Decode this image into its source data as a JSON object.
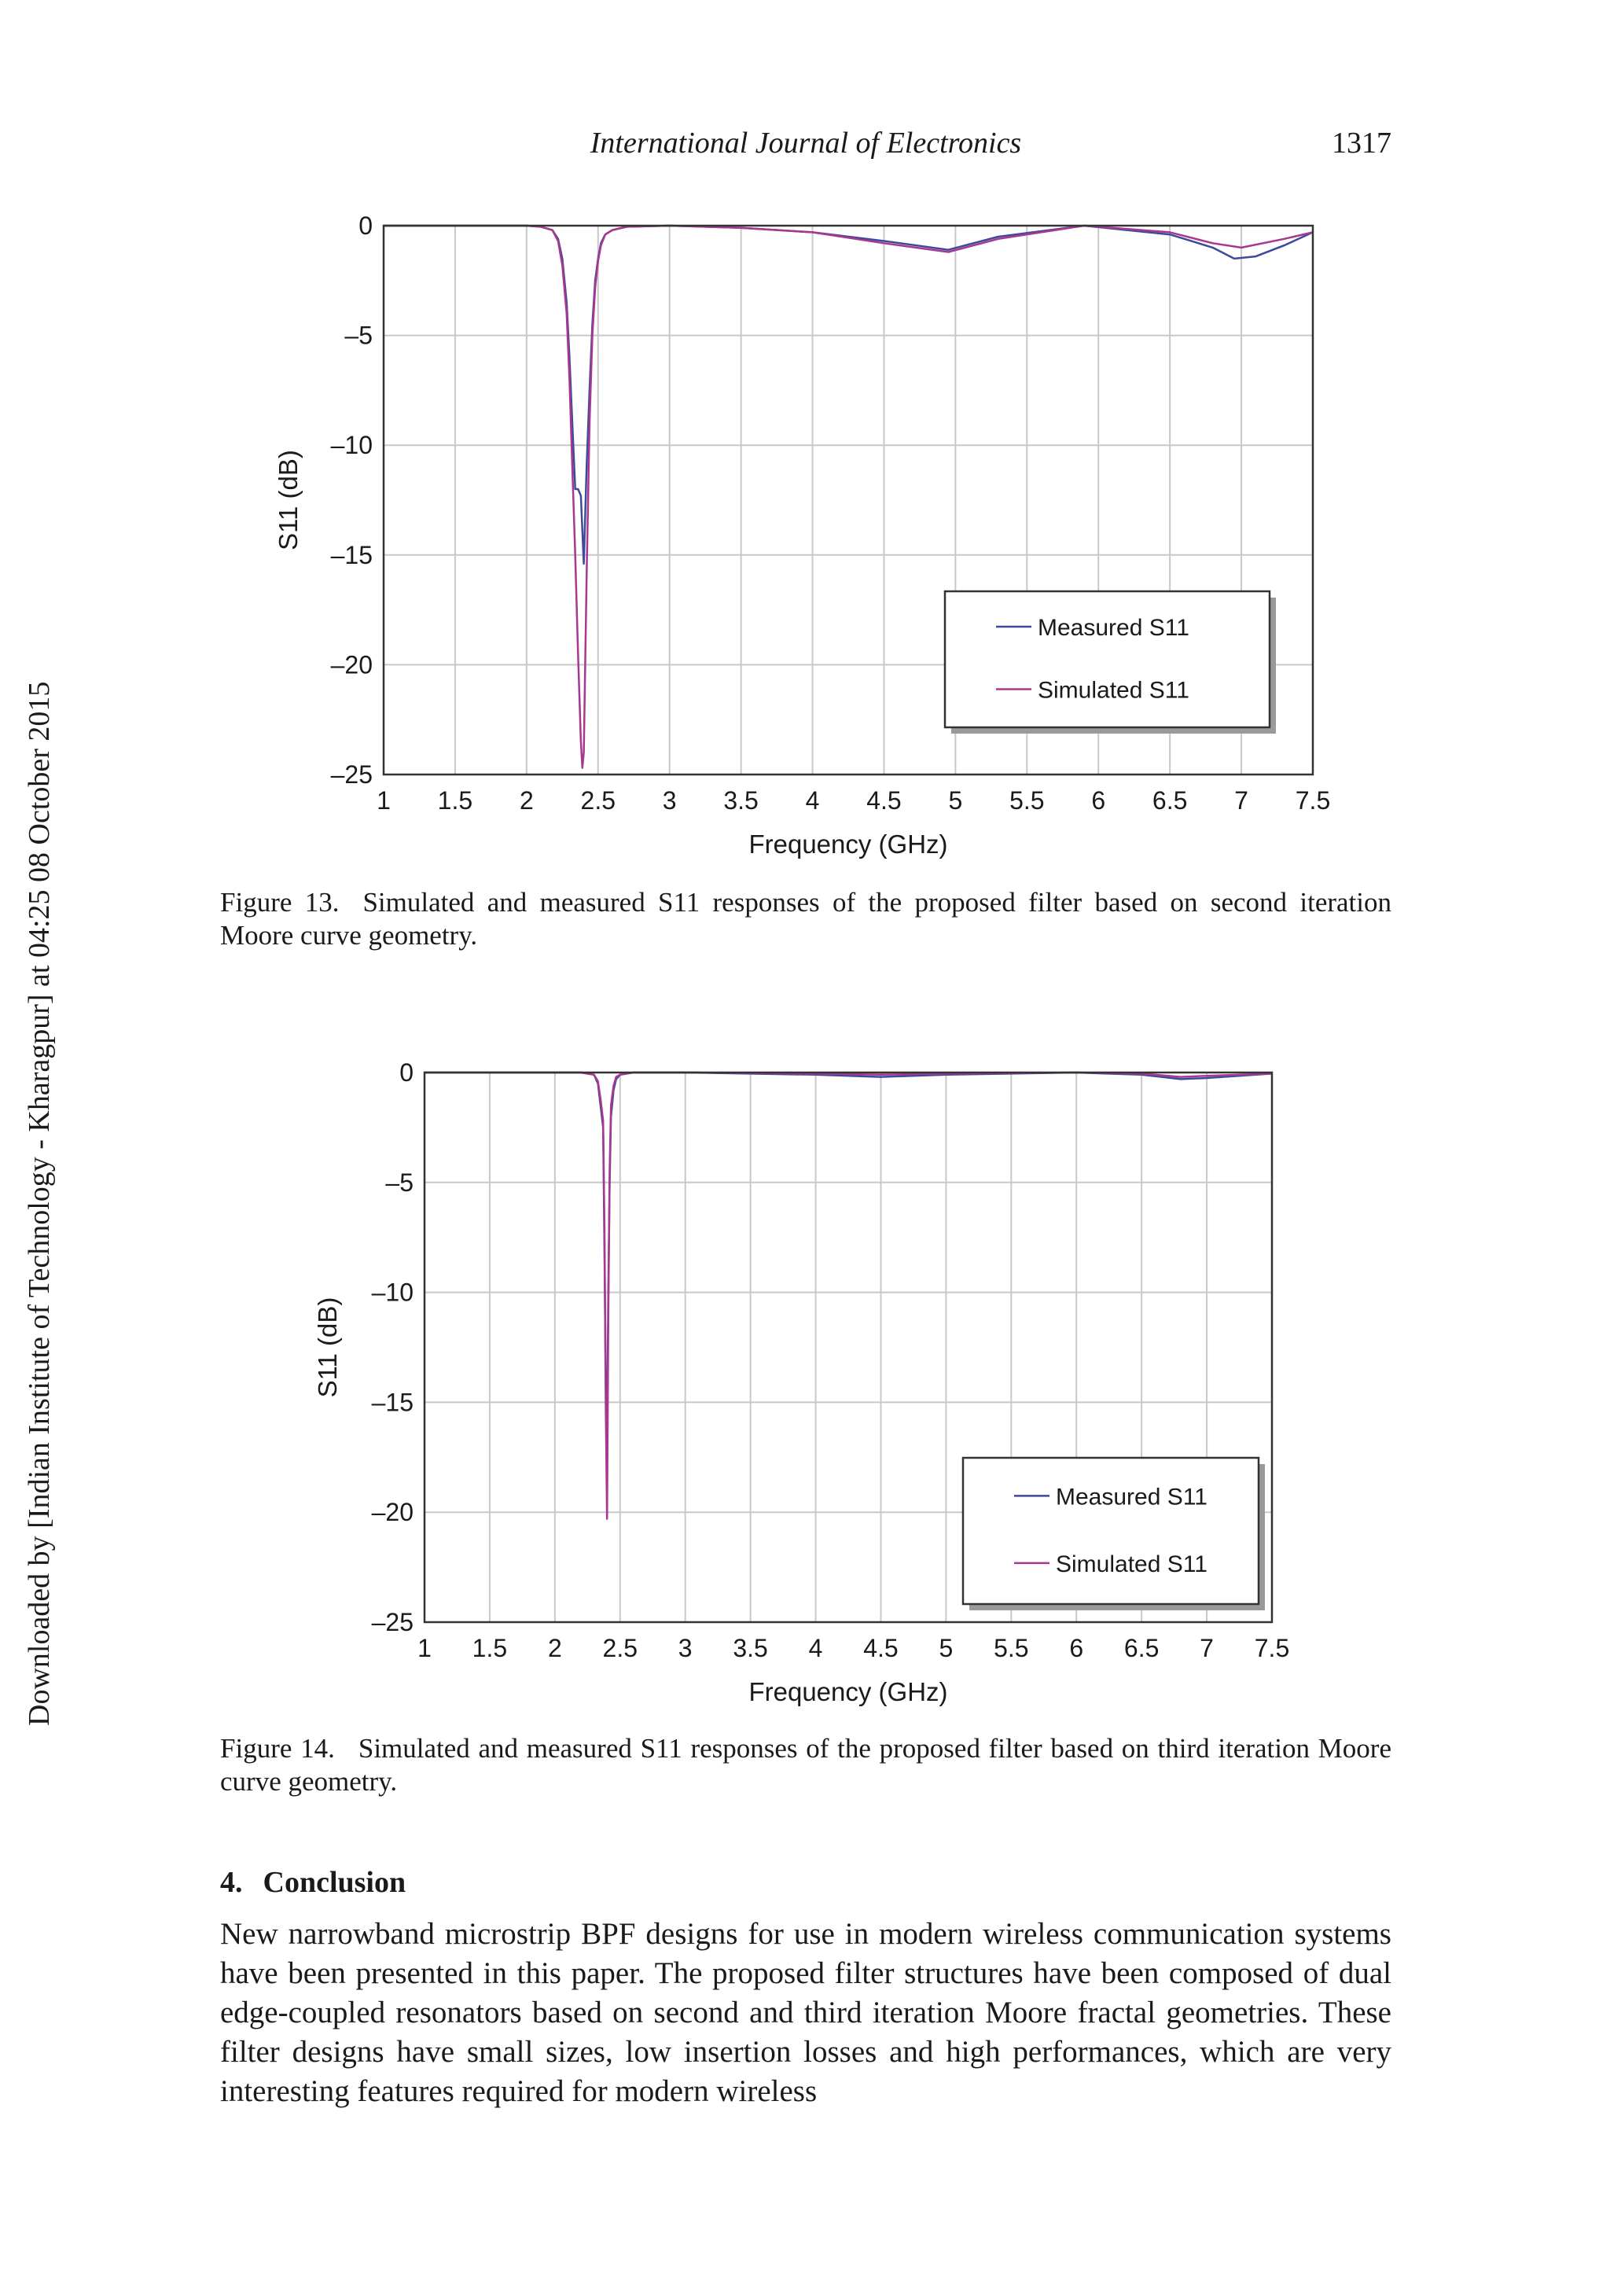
{
  "header": {
    "journal": "International Journal of Electronics",
    "page_number": "1317"
  },
  "watermark": "Downloaded by [Indian Institute of Technology - Kharagpur] at 04:25 08 October 2015",
  "figures": [
    {
      "label": "Figure 13.",
      "caption": "Simulated and measured S11 responses of the proposed filter based on second iteration Moore curve geometry."
    },
    {
      "label": "Figure 14.",
      "caption": "Simulated and measured S11 responses of the proposed filter based on third iteration Moore curve geometry."
    }
  ],
  "chart_data": [
    {
      "type": "line",
      "xlabel": "Frequency (GHz)",
      "ylabel": "S11 (dB)",
      "xlim": [
        1,
        7.5
      ],
      "ylim": [
        -25,
        0
      ],
      "x_ticks": [
        "1",
        "1.5",
        "2",
        "2.5",
        "3",
        "3.5",
        "4",
        "4.5",
        "5",
        "5.5",
        "6",
        "6.5",
        "7",
        "7.5"
      ],
      "y_ticks": [
        "0",
        "–5",
        "–10",
        "–15",
        "–20",
        "–25"
      ],
      "grid": true,
      "legend_position": "lower-right",
      "series": [
        {
          "name": "Measured S11",
          "color": "#3d4a9c",
          "x": [
            1,
            2.0,
            2.1,
            2.18,
            2.22,
            2.25,
            2.28,
            2.3,
            2.32,
            2.34,
            2.36,
            2.38,
            2.4,
            2.42,
            2.44,
            2.46,
            2.48,
            2.5,
            2.52,
            2.55,
            2.6,
            2.7,
            3.0,
            3.5,
            4.0,
            4.5,
            4.95,
            5.3,
            5.9,
            6.5,
            6.8,
            6.95,
            7.1,
            7.3,
            7.5
          ],
          "y": [
            0,
            0,
            -0.05,
            -0.2,
            -0.6,
            -1.5,
            -3.5,
            -6,
            -9,
            -12,
            -12,
            -12.3,
            -15.4,
            -11,
            -7.5,
            -4.5,
            -2.5,
            -1.5,
            -0.8,
            -0.4,
            -0.2,
            -0.05,
            0,
            -0.1,
            -0.3,
            -0.7,
            -1.1,
            -0.5,
            0,
            -0.4,
            -1.0,
            -1.5,
            -1.4,
            -0.9,
            -0.3
          ]
        },
        {
          "name": "Simulated S11",
          "color": "#a8388f",
          "x": [
            1,
            2.0,
            2.1,
            2.18,
            2.22,
            2.25,
            2.28,
            2.3,
            2.32,
            2.34,
            2.36,
            2.38,
            2.39,
            2.4,
            2.42,
            2.44,
            2.46,
            2.48,
            2.5,
            2.52,
            2.55,
            2.6,
            2.7,
            3.0,
            3.5,
            4.0,
            4.5,
            4.95,
            5.3,
            5.9,
            6.5,
            6.8,
            7.0,
            7.3,
            7.5
          ],
          "y": [
            0,
            0,
            -0.05,
            -0.2,
            -0.7,
            -1.8,
            -4,
            -7,
            -11,
            -15,
            -19.5,
            -23.5,
            -24.7,
            -24,
            -16,
            -9,
            -5,
            -2.8,
            -1.6,
            -0.9,
            -0.4,
            -0.2,
            -0.05,
            0,
            -0.1,
            -0.3,
            -0.8,
            -1.2,
            -0.6,
            0,
            -0.3,
            -0.8,
            -1.0,
            -0.6,
            -0.3
          ]
        }
      ]
    },
    {
      "type": "line",
      "xlabel": "Frequency (GHz)",
      "ylabel": "S11 (dB)",
      "xlim": [
        1,
        7.5
      ],
      "ylim": [
        -25,
        0
      ],
      "x_ticks": [
        "1",
        "1.5",
        "2",
        "2.5",
        "3",
        "3.5",
        "4",
        "4.5",
        "5",
        "5.5",
        "6",
        "6.5",
        "7",
        "7.5"
      ],
      "y_ticks": [
        "0",
        "–5",
        "–10",
        "–15",
        "–20",
        "–25"
      ],
      "grid": true,
      "legend_position": "lower-right",
      "series": [
        {
          "name": "Measured S11",
          "color": "#3d4a9c",
          "x": [
            1,
            2.2,
            2.3,
            2.33,
            2.35,
            2.37,
            2.38,
            2.39,
            2.4,
            2.41,
            2.42,
            2.43,
            2.45,
            2.47,
            2.5,
            2.6,
            3.0,
            4.0,
            4.5,
            5.0,
            6.0,
            6.5,
            6.8,
            7.0,
            7.5
          ],
          "y": [
            0,
            0,
            -0.1,
            -0.5,
            -1.5,
            -2.5,
            -8,
            -14,
            -16.5,
            -10,
            -5,
            -2,
            -0.8,
            -0.3,
            -0.1,
            0,
            0,
            -0.1,
            -0.2,
            -0.1,
            0,
            -0.1,
            -0.3,
            -0.25,
            -0.05
          ]
        },
        {
          "name": "Simulated S11",
          "color": "#a8388f",
          "x": [
            1,
            2.2,
            2.3,
            2.33,
            2.35,
            2.37,
            2.38,
            2.39,
            2.4,
            2.41,
            2.42,
            2.43,
            2.45,
            2.47,
            2.5,
            2.6,
            3.0,
            4.0,
            4.5,
            5.0,
            6.0,
            6.5,
            6.8,
            7.0,
            7.5
          ],
          "y": [
            0,
            0,
            -0.1,
            -0.4,
            -1.2,
            -2.2,
            -7,
            -15,
            -20.3,
            -11,
            -4.5,
            -1.5,
            -0.6,
            -0.2,
            -0.1,
            0,
            0,
            -0.05,
            -0.1,
            -0.05,
            0,
            -0.05,
            -0.2,
            -0.15,
            -0.05
          ]
        }
      ]
    }
  ],
  "conclusion": {
    "number": "4.",
    "title": "Conclusion",
    "text": "New narrowband microstrip BPF designs for use in modern wireless communication systems have been presented in this paper. The proposed filter structures have been composed of dual edge-coupled resonators based on second and third iteration Moore fractal geometries. These filter designs have small sizes, low insertion losses and high performances, which are very interesting features required for modern wireless"
  }
}
